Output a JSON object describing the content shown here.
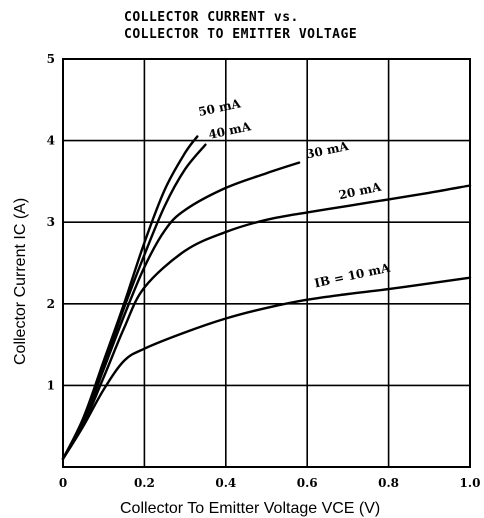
{
  "chart_data": {
    "type": "line",
    "title": "COLLECTOR CURRENT vs.",
    "subtitle": "COLLECTOR TO EMITTER VOLTAGE",
    "xlabel": "Collector To Emitter Voltage  VCE (V)",
    "ylabel": "Collector Current  IC (A)",
    "xlim": [
      0,
      1.0
    ],
    "ylim": [
      0,
      5
    ],
    "x_ticks": [
      "0",
      "0.2",
      "0.4",
      "0.6",
      "0.8",
      "1.0"
    ],
    "y_ticks": [
      "1",
      "2",
      "3",
      "4",
      "5"
    ],
    "grid": true,
    "series": [
      {
        "name": "50 mA",
        "x": [
          0,
          0.05,
          0.1,
          0.15,
          0.2,
          0.25,
          0.3,
          0.33
        ],
        "y": [
          0.1,
          0.6,
          1.3,
          2.0,
          2.75,
          3.4,
          3.85,
          4.05
        ]
      },
      {
        "name": "40 mA",
        "x": [
          0,
          0.05,
          0.1,
          0.15,
          0.2,
          0.25,
          0.3,
          0.35
        ],
        "y": [
          0.1,
          0.58,
          1.25,
          1.95,
          2.6,
          3.2,
          3.65,
          3.95
        ]
      },
      {
        "name": "30 mA",
        "x": [
          0,
          0.05,
          0.1,
          0.15,
          0.2,
          0.25,
          0.3,
          0.4,
          0.5,
          0.58
        ],
        "y": [
          0.1,
          0.55,
          1.2,
          1.85,
          2.45,
          2.9,
          3.15,
          3.42,
          3.6,
          3.73
        ]
      },
      {
        "name": "20 mA",
        "x": [
          0,
          0.05,
          0.1,
          0.15,
          0.2,
          0.3,
          0.4,
          0.5,
          0.6,
          0.7,
          0.8,
          0.9,
          1.0
        ],
        "y": [
          0.1,
          0.52,
          1.1,
          1.7,
          2.2,
          2.65,
          2.88,
          3.03,
          3.12,
          3.2,
          3.28,
          3.36,
          3.45
        ]
      },
      {
        "name": "IB = 10 mA",
        "x": [
          0,
          0.05,
          0.1,
          0.15,
          0.2,
          0.3,
          0.4,
          0.5,
          0.6,
          0.7,
          0.8,
          0.9,
          1.0
        ],
        "y": [
          0.1,
          0.5,
          0.95,
          1.3,
          1.45,
          1.65,
          1.82,
          1.95,
          2.05,
          2.12,
          2.18,
          2.25,
          2.32
        ]
      }
    ],
    "curve_labels": [
      {
        "text": "50 mA",
        "x": 0.335,
        "y": 4.3
      },
      {
        "text": "40 mA",
        "x": 0.36,
        "y": 4.02
      },
      {
        "text": "30 mA",
        "x": 0.6,
        "y": 3.78
      },
      {
        "text": "20 mA",
        "x": 0.68,
        "y": 3.28
      },
      {
        "text": "IB = 10 mA",
        "x": 0.62,
        "y": 2.2
      }
    ]
  }
}
